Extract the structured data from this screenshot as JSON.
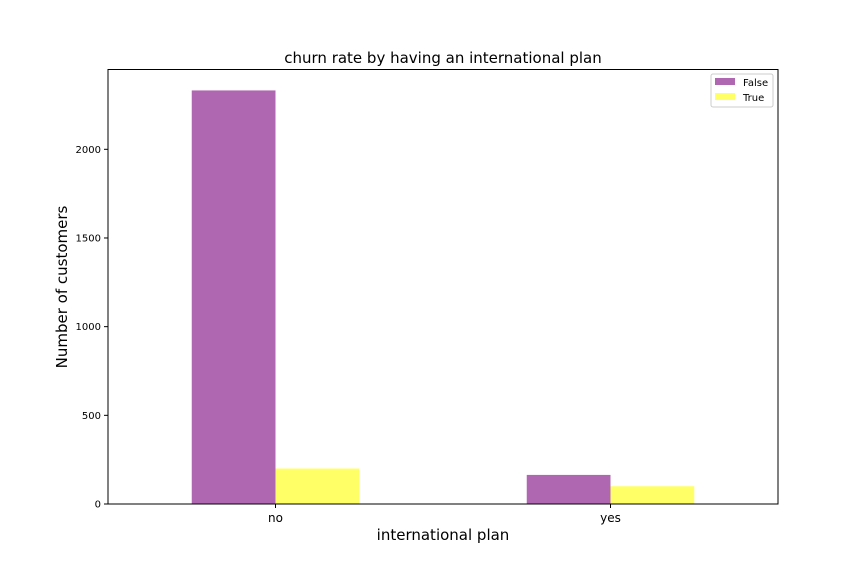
{
  "chart_data": {
    "type": "bar",
    "title": "churn rate by having an international plan",
    "xlabel": "international plan",
    "ylabel": "Number of customers",
    "categories": [
      "no",
      "yes"
    ],
    "series": [
      {
        "name": "False",
        "values": [
          2332,
          164
        ],
        "color": "#b067b2"
      },
      {
        "name": "True",
        "values": [
          200,
          100
        ],
        "color": "#ffff66"
      }
    ],
    "yticks": [
      0,
      500,
      1000,
      1500,
      2000
    ],
    "ylim": [
      0,
      2450
    ],
    "grid": false,
    "legend_position": "top-right"
  }
}
